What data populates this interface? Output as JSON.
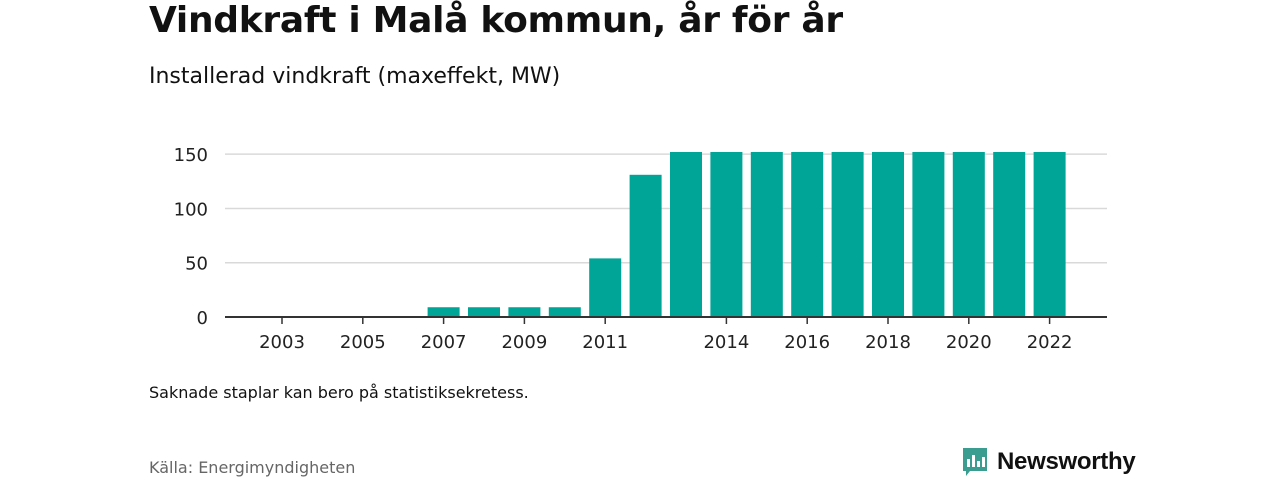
{
  "header": {
    "title": "Vindkraft i Malå kommun, år för år",
    "subtitle": "Installerad vindkraft (maxeffekt, MW)"
  },
  "footer": {
    "note": "Saknade staplar kan bero på statistiksekretess.",
    "source": "Källa: Energimyndigheten",
    "brand": "Newsworthy"
  },
  "colors": {
    "bar": "#00a598",
    "grid": "#d9d9d9",
    "axis": "#333333",
    "brand": "#3a9d8f"
  },
  "chart_data": {
    "type": "bar",
    "title": "Vindkraft i Malå kommun, år för år",
    "subtitle": "Installerad vindkraft (maxeffekt, MW)",
    "categories": [
      "2003",
      "2004",
      "2005",
      "2006",
      "2007",
      "2008",
      "2009",
      "2010",
      "2011",
      "2012",
      "2013",
      "2014",
      "2015",
      "2016",
      "2017",
      "2018",
      "2019",
      "2020",
      "2021",
      "2022"
    ],
    "values": [
      null,
      null,
      null,
      null,
      9,
      9,
      9,
      9,
      54,
      131,
      152,
      152,
      152,
      152,
      152,
      152,
      152,
      152,
      152,
      152
    ],
    "x_tick_labels": [
      "2003",
      "2005",
      "2007",
      "2009",
      "2011",
      "2014",
      "2016",
      "2018",
      "2020",
      "2022"
    ],
    "y_ticks": [
      0,
      50,
      100,
      150
    ],
    "ylim": [
      0,
      152
    ],
    "grid": true,
    "legend": "none"
  }
}
